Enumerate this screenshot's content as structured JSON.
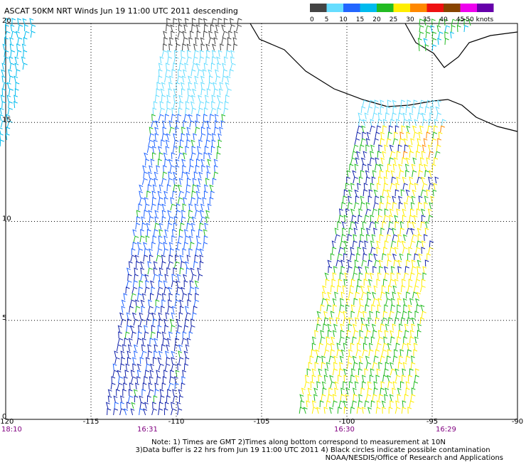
{
  "header": {
    "title": "ASCAT 50KM NRT Winds  Jun 19 11:00 UTC 2011 descending"
  },
  "colorbar": [
    {
      "label": "0",
      "color": "#444444"
    },
    {
      "label": "5",
      "color": "#66ddff"
    },
    {
      "label": "10",
      "color": "#2266ff"
    },
    {
      "label": "15",
      "color": "#00bbee"
    },
    {
      "label": "20",
      "color": "#22bb22"
    },
    {
      "label": "25",
      "color": "#ffee00"
    },
    {
      "label": "30",
      "color": "#ff8800"
    },
    {
      "label": "35",
      "color": "#ee1111"
    },
    {
      "label": "40",
      "color": "#884400"
    },
    {
      "label": "45",
      "color": "#ee00ee"
    },
    {
      "label": ">50 knots",
      "color": "#6600aa"
    }
  ],
  "lat_labels": [
    "20",
    "15",
    "10",
    "5",
    "0"
  ],
  "lon_labels": [
    "-120",
    "-115",
    "-110",
    "-105",
    "-100",
    "-95",
    "-90"
  ],
  "times": [
    "18:10",
    "16:31",
    "16:30",
    "16:29"
  ],
  "notes": [
    "Note: 1) Times are GMT 2)Times along bottom correspond to measurement at 10N",
    "3)Data buffer is 22 hrs from Jun 19 11:00 UTC 2011 4) Black circles indicate possible contamination",
    "NOAA/NESDIS/Office of Research and Applications"
  ]
}
